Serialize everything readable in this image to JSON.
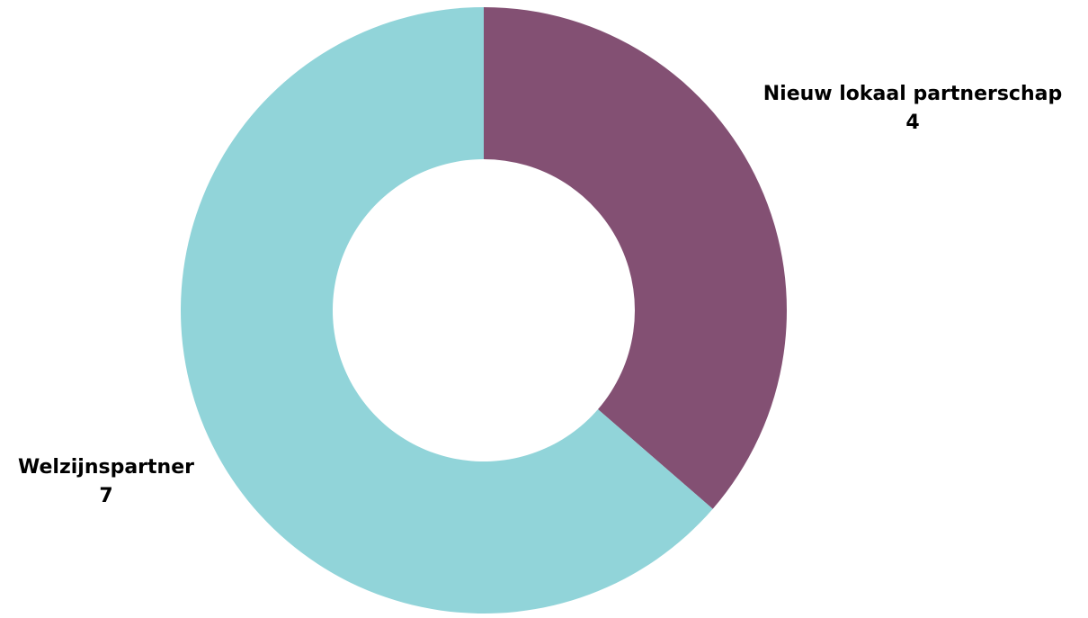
{
  "chart_data": {
    "type": "pie",
    "donut": true,
    "title": "",
    "slices": [
      {
        "label": "Nieuw lokaal partnerschap",
        "value": 4,
        "color": "#835073"
      },
      {
        "label": "Welzijnspartner",
        "value": 7,
        "color": "#91d4d9"
      }
    ],
    "start_angle_deg": 0,
    "direction": "clockwise",
    "legend": "none"
  }
}
